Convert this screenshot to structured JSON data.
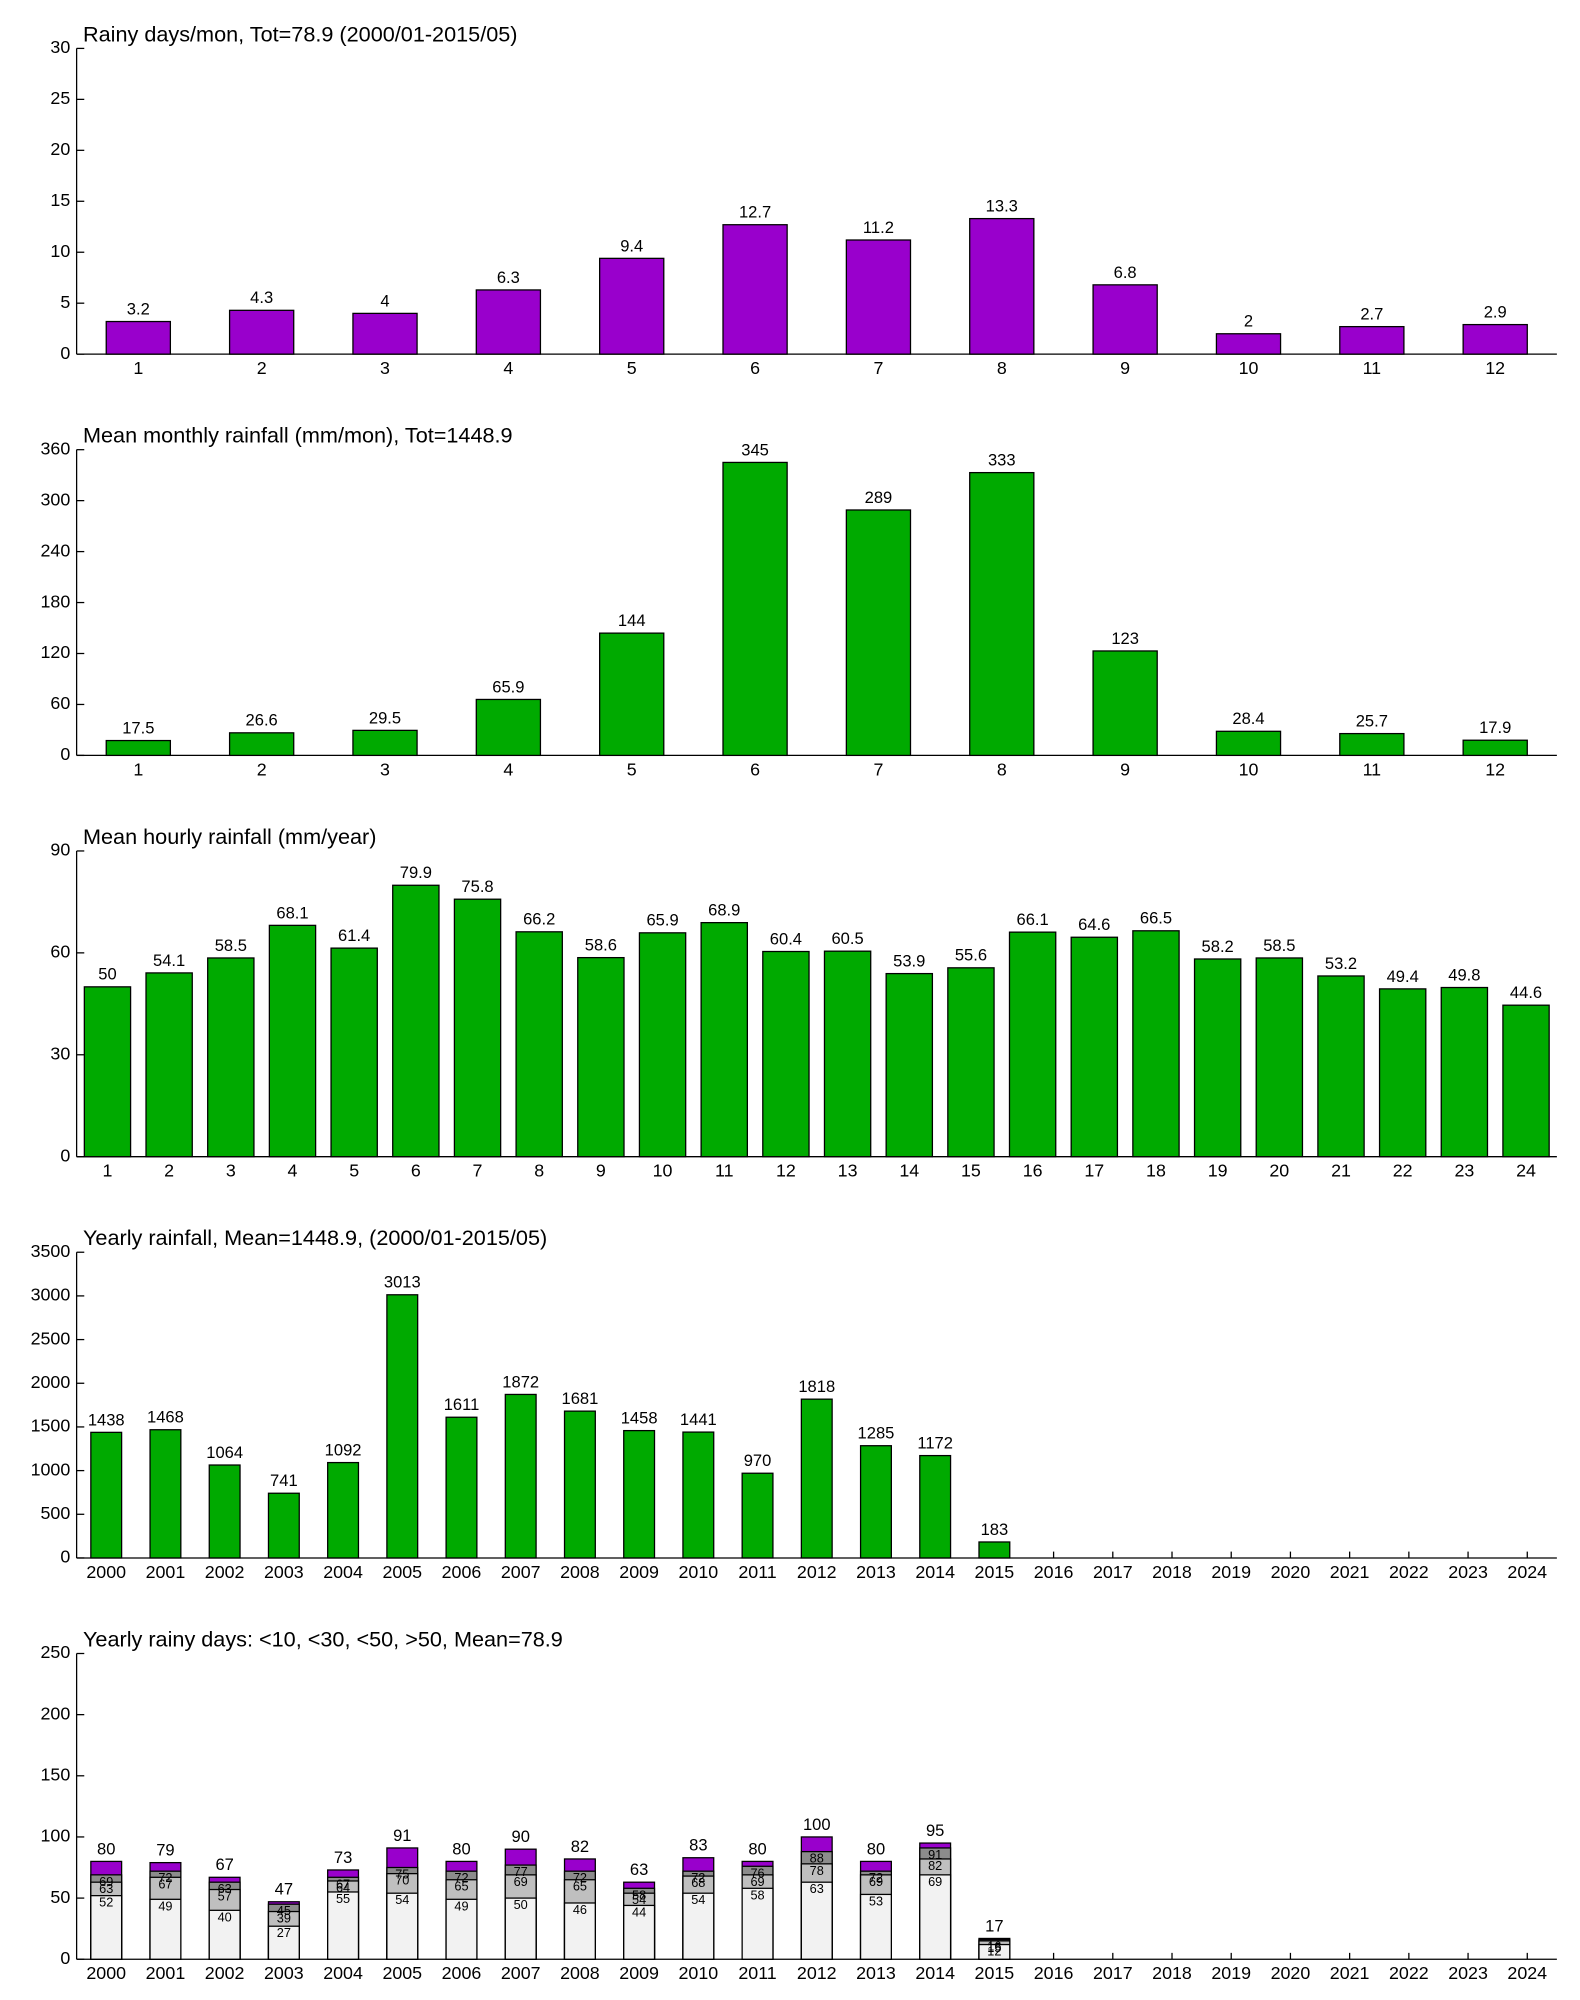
{
  "chart_data": [
    {
      "type": "bar",
      "title": "Rainy days/mon, Tot=78.9 (2000/01-2015/05)",
      "categories": [
        "1",
        "2",
        "3",
        "4",
        "5",
        "6",
        "7",
        "8",
        "9",
        "10",
        "11",
        "12"
      ],
      "values": [
        3.2,
        4.3,
        4,
        6.3,
        9.4,
        12.7,
        11.2,
        13.3,
        6.8,
        2,
        2.7,
        2.9
      ],
      "color": "#9900cc",
      "ylim": [
        0,
        30
      ],
      "yticks": [
        0,
        5,
        10,
        15,
        20,
        25,
        30
      ]
    },
    {
      "type": "bar",
      "title": "Mean monthly rainfall (mm/mon), Tot=1448.9",
      "categories": [
        "1",
        "2",
        "3",
        "4",
        "5",
        "6",
        "7",
        "8",
        "9",
        "10",
        "11",
        "12"
      ],
      "values": [
        17.5,
        26.6,
        29.5,
        65.9,
        144,
        345,
        289,
        333,
        123,
        28.4,
        25.7,
        17.9
      ],
      "color": "#00aa00",
      "ylim": [
        0,
        360
      ],
      "yticks": [
        0,
        60,
        120,
        180,
        240,
        300,
        360
      ]
    },
    {
      "type": "bar",
      "title": "Mean hourly rainfall (mm/year)",
      "categories": [
        "1",
        "2",
        "3",
        "4",
        "5",
        "6",
        "7",
        "8",
        "9",
        "10",
        "11",
        "12",
        "13",
        "14",
        "15",
        "16",
        "17",
        "18",
        "19",
        "20",
        "21",
        "22",
        "23",
        "24"
      ],
      "values": [
        50,
        54.1,
        58.5,
        68.1,
        61.4,
        79.9,
        75.8,
        66.2,
        58.6,
        65.9,
        68.9,
        60.4,
        60.5,
        53.9,
        55.6,
        66.1,
        64.6,
        66.5,
        58.2,
        58.5,
        53.2,
        49.4,
        49.8,
        44.6
      ],
      "color": "#00aa00",
      "ylim": [
        0,
        90
      ],
      "yticks": [
        0,
        30,
        60,
        90
      ]
    },
    {
      "type": "bar",
      "title": "Yearly rainfall, Mean=1448.9, (2000/01-2015/05)",
      "categories": [
        "2000",
        "2001",
        "2002",
        "2003",
        "2004",
        "2005",
        "2006",
        "2007",
        "2008",
        "2009",
        "2010",
        "2011",
        "2012",
        "2013",
        "2014",
        "2015",
        "2016",
        "2017",
        "2018",
        "2019",
        "2020",
        "2021",
        "2022",
        "2023",
        "2024"
      ],
      "values": [
        1438,
        1468,
        1064,
        741,
        1092,
        3013,
        1611,
        1872,
        1681,
        1458,
        1441,
        970,
        1818,
        1285,
        1172,
        183,
        null,
        null,
        null,
        null,
        null,
        null,
        null,
        null,
        null
      ],
      "color": "#00aa00",
      "ylim": [
        0,
        3500
      ],
      "yticks": [
        0,
        500,
        1000,
        1500,
        2000,
        2500,
        3000,
        3500
      ]
    },
    {
      "type": "overlapping_bar",
      "title": "Yearly rainy days: <10, <30, <50, >50, Mean=78.9",
      "categories": [
        "2000",
        "2001",
        "2002",
        "2003",
        "2004",
        "2005",
        "2006",
        "2007",
        "2008",
        "2009",
        "2010",
        "2011",
        "2012",
        "2013",
        "2014",
        "2015",
        "2016",
        "2017",
        "2018",
        "2019",
        "2020",
        "2021",
        "2022",
        "2023",
        "2024"
      ],
      "series": [
        {
          "color": "#f2f2f2",
          "values": [
            52,
            49,
            40,
            27,
            55,
            54,
            49,
            50,
            46,
            44,
            54,
            58,
            63,
            53,
            69,
            12,
            null,
            null,
            null,
            null,
            null,
            null,
            null,
            null,
            null
          ]
        },
        {
          "color": "#bfbfbf",
          "values": [
            63,
            67,
            57,
            39,
            64,
            70,
            65,
            69,
            65,
            54,
            68,
            69,
            78,
            69,
            82,
            15,
            null,
            null,
            null,
            null,
            null,
            null,
            null,
            null,
            null
          ]
        },
        {
          "color": "#8c8c8c",
          "values": [
            69,
            72,
            63,
            45,
            67,
            75,
            72,
            77,
            72,
            58,
            72,
            76,
            88,
            72,
            91,
            16,
            null,
            null,
            null,
            null,
            null,
            null,
            null,
            null,
            null
          ]
        },
        {
          "color": "#9900cc",
          "values": [
            80,
            79,
            67,
            47,
            73,
            91,
            80,
            90,
            82,
            63,
            83,
            80,
            100,
            80,
            95,
            17,
            null,
            null,
            null,
            null,
            null,
            null,
            null,
            null,
            null
          ]
        }
      ],
      "ylim": [
        0,
        250
      ],
      "yticks": [
        0,
        50,
        100,
        150,
        200,
        250
      ]
    }
  ]
}
